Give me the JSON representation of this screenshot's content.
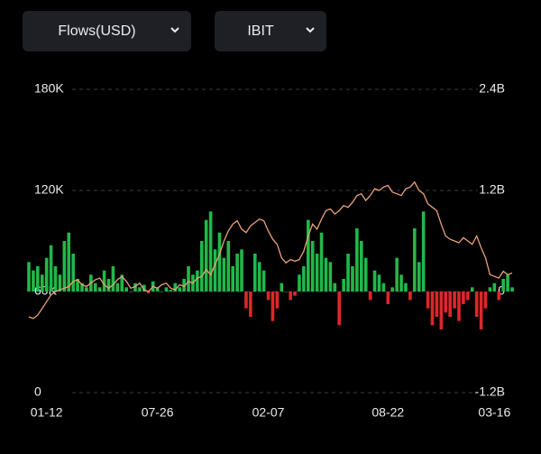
{
  "controls": {
    "metric": "Flows(USD)",
    "fund": "IBIT"
  },
  "chart_data": {
    "type": "bar",
    "categories": [
      null,
      null,
      null,
      null,
      "01-12",
      null,
      null,
      null,
      null,
      null,
      null,
      null,
      null,
      null,
      null,
      null,
      null,
      null,
      null,
      null,
      null,
      null,
      null,
      null,
      null,
      null,
      null,
      null,
      null,
      "07-26",
      null,
      null,
      null,
      null,
      null,
      null,
      null,
      null,
      null,
      null,
      null,
      null,
      null,
      null,
      null,
      null,
      null,
      null,
      null,
      null,
      null,
      null,
      null,
      null,
      "02-07",
      null,
      null,
      null,
      null,
      null,
      null,
      null,
      null,
      null,
      null,
      null,
      null,
      null,
      null,
      null,
      null,
      null,
      null,
      null,
      null,
      null,
      null,
      null,
      null,
      null,
      null,
      "08-22",
      null,
      null,
      null,
      null,
      null,
      null,
      null,
      null,
      null,
      null,
      null,
      null,
      null,
      null,
      null,
      null,
      null,
      null,
      null,
      null,
      null,
      null,
      null,
      "03-16",
      null,
      null,
      null,
      null
    ],
    "series": [
      {
        "type": "bar",
        "axis": "y2",
        "color": "#21b84a",
        "negative_color": "#e0262a",
        "values": [
          0.35,
          0.25,
          0.3,
          0.2,
          0.4,
          0.55,
          0.3,
          0.2,
          0.6,
          0.7,
          0.45,
          0.15,
          0.1,
          0.05,
          0.2,
          0.1,
          0.05,
          0.25,
          0.15,
          0.3,
          0.1,
          0.2,
          0.05,
          0.0,
          0.1,
          0.05,
          0.08,
          -0.02,
          0.12,
          0.05,
          0.0,
          0.05,
          0.02,
          0.1,
          0.05,
          0.15,
          0.3,
          0.2,
          0.25,
          0.6,
          0.85,
          0.95,
          0.5,
          0.7,
          0.4,
          0.6,
          0.3,
          0.45,
          0.5,
          -0.2,
          -0.3,
          0.45,
          0.35,
          0.25,
          -0.1,
          -0.35,
          -0.2,
          0.1,
          0.0,
          -0.1,
          -0.05,
          0.2,
          0.3,
          0.85,
          0.6,
          0.45,
          0.7,
          0.4,
          0.35,
          0.1,
          -0.4,
          0.15,
          0.45,
          0.3,
          0.75,
          0.6,
          0.4,
          -0.1,
          0.25,
          0.2,
          0.1,
          -0.15,
          0.05,
          0.4,
          0.2,
          0.1,
          -0.1,
          0.75,
          0.35,
          0.95,
          -0.2,
          -0.4,
          -0.3,
          -0.45,
          -0.25,
          -0.3,
          -0.2,
          -0.35,
          -0.15,
          -0.1,
          0.05,
          -0.3,
          -0.45,
          -0.2,
          0.05,
          0.1,
          -0.1,
          0.15,
          0.2,
          0.05
        ]
      },
      {
        "type": "line",
        "axis": "y",
        "color": "#e9a274",
        "values": [
          45000,
          44000,
          46000,
          50000,
          54000,
          58000,
          60000,
          61000,
          62000,
          63000,
          66000,
          67000,
          64000,
          63000,
          65000,
          67000,
          68000,
          64000,
          62000,
          64000,
          67000,
          69000,
          66000,
          62000,
          63000,
          65000,
          61000,
          60000,
          63000,
          62000,
          64000,
          65000,
          62000,
          61000,
          64000,
          63000,
          66000,
          65000,
          68000,
          69000,
          73000,
          70000,
          76000,
          82000,
          90000,
          96000,
          100000,
          102000,
          97000,
          95000,
          99000,
          101000,
          103000,
          102000,
          96000,
          91000,
          88000,
          80000,
          77000,
          79000,
          78000,
          79000,
          84000,
          93000,
          100000,
          97000,
          103000,
          108000,
          109000,
          106000,
          108000,
          111000,
          110000,
          113000,
          117000,
          118000,
          114000,
          117000,
          121000,
          120000,
          122000,
          123000,
          119000,
          118000,
          117000,
          121000,
          122000,
          125000,
          120000,
          118000,
          112000,
          110000,
          108000,
          100000,
          93000,
          91000,
          90000,
          89000,
          92000,
          90000,
          88000,
          93000,
          86000,
          80000,
          70000,
          69000,
          68000,
          72000,
          70000,
          71000
        ]
      }
    ],
    "ylim": [
      0,
      180000
    ],
    "yticks": [
      0,
      {
        "value": 60000,
        "label": "60K"
      },
      {
        "value": 120000,
        "label": "120K"
      },
      {
        "value": 180000,
        "label": "180K"
      }
    ],
    "y2lim": [
      -1.2,
      2.4
    ],
    "y2ticks": [
      {
        "value": -1.2,
        "label": "-1.2B"
      },
      0,
      {
        "value": 1.2,
        "label": "1.2B"
      },
      {
        "value": 2.4,
        "label": "2.4B"
      }
    ],
    "grid": true
  }
}
